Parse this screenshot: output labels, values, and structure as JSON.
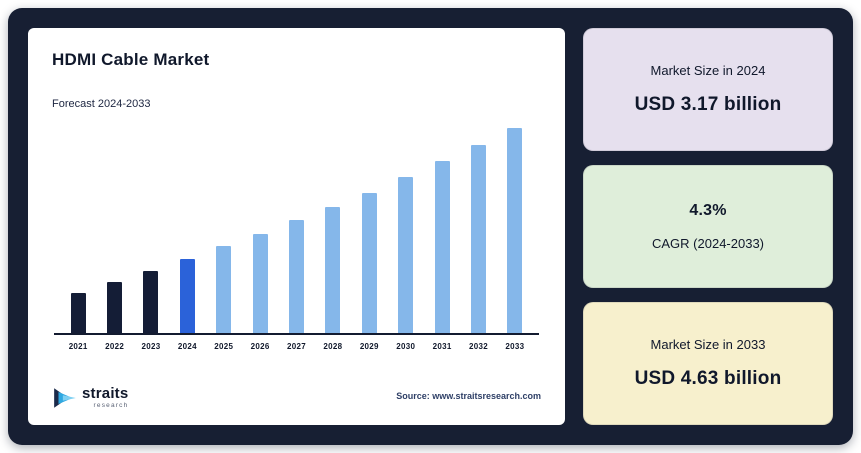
{
  "title": "HDMI Cable Market",
  "subtitle": "Forecast 2024-2033",
  "source": "Source: www.straitsresearch.com",
  "logo": {
    "brand": "straits",
    "sub": "research"
  },
  "colors": {
    "frame_bg": "#171f33",
    "chart_card_bg": "#ffffff",
    "axis": "#131b30",
    "bar_dark": "#141d36",
    "bar_accent": "#2b62d9",
    "bar_light": "#85b7ea",
    "card_lavender": "#e6e0ee",
    "card_green": "#dfeeda",
    "card_yellow": "#f7f0cd",
    "text_dark": "#10182b"
  },
  "chart_data": {
    "type": "bar",
    "title": "HDMI Cable Market",
    "xlabel": "",
    "ylabel": "",
    "unit": "USD billion",
    "legend": false,
    "grid": false,
    "categories": [
      "2021",
      "2022",
      "2023",
      "2024",
      "2025",
      "2026",
      "2027",
      "2028",
      "2029",
      "2030",
      "2031",
      "2032",
      "2033"
    ],
    "values": [
      2.79,
      2.91,
      3.04,
      3.17,
      3.31,
      3.45,
      3.6,
      3.75,
      3.91,
      4.08,
      4.26,
      4.44,
      4.63
    ],
    "bar_colors": [
      "#141d36",
      "#141d36",
      "#141d36",
      "#2b62d9",
      "#85b7ea",
      "#85b7ea",
      "#85b7ea",
      "#85b7ea",
      "#85b7ea",
      "#85b7ea",
      "#85b7ea",
      "#85b7ea",
      "#85b7ea"
    ]
  },
  "stat_cards": [
    {
      "label": "Market Size in 2024",
      "value": "USD 3.17 billion",
      "bg": "#e6e0ee",
      "value_first": false
    },
    {
      "label": "CAGR (2024-2033)",
      "value": "4.3%",
      "bg": "#dfeeda",
      "value_first": true
    },
    {
      "label": "Market Size in 2033",
      "value": "USD 4.63 billion",
      "bg": "#f7f0cd",
      "value_first": false
    }
  ]
}
